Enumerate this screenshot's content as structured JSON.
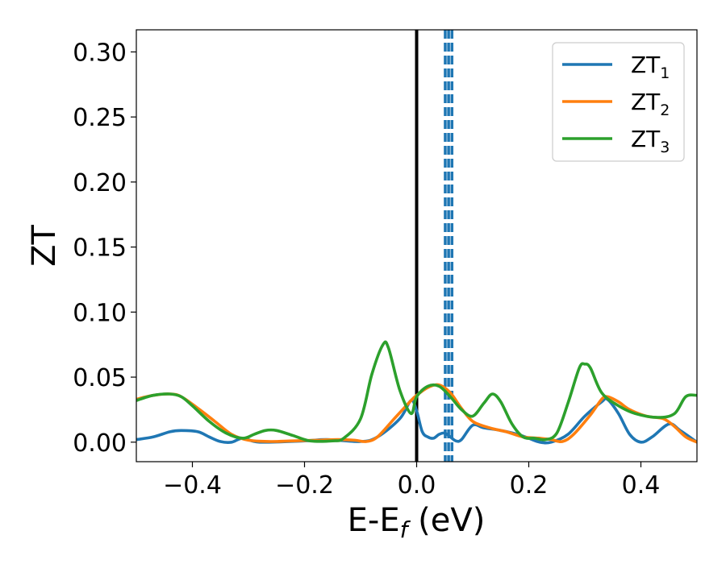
{
  "chart_data": {
    "type": "line",
    "title": "",
    "xlabel": "E-E",
    "xlabel_subscript": "f",
    "xlabel_unit": " (eV)",
    "ylabel": "ZT",
    "xlim": [
      -0.5,
      0.5
    ],
    "ylim": [
      -0.015,
      0.317
    ],
    "xticks": [
      -0.4,
      -0.2,
      0.0,
      0.2,
      0.4
    ],
    "xtick_labels": [
      "−0.4",
      "−0.2",
      "0.0",
      "0.2",
      "0.4"
    ],
    "yticks": [
      0.0,
      0.05,
      0.1,
      0.15,
      0.2,
      0.25,
      0.3
    ],
    "ytick_labels": [
      "0.00",
      "0.05",
      "0.10",
      "0.15",
      "0.20",
      "0.25",
      "0.30"
    ],
    "grid": false,
    "legend_position": "top-right",
    "vlines": [
      {
        "x": 0.0,
        "style": "solid",
        "color": "#000000"
      },
      {
        "x": 0.051,
        "style": "dashed",
        "color": "#1f77b4"
      },
      {
        "x": 0.057,
        "style": "dashed",
        "color": "#1f77b4"
      },
      {
        "x": 0.063,
        "style": "dashed",
        "color": "#1f77b4"
      }
    ],
    "series": [
      {
        "name": "ZT",
        "subscript": "1",
        "color": "#1f77b4",
        "points": [
          [
            -0.5,
            0.002
          ],
          [
            -0.47,
            0.004
          ],
          [
            -0.44,
            0.008
          ],
          [
            -0.42,
            0.009
          ],
          [
            -0.39,
            0.008
          ],
          [
            -0.37,
            0.004
          ],
          [
            -0.35,
            0.0005
          ],
          [
            -0.33,
            0.0
          ],
          [
            -0.31,
            0.003
          ],
          [
            -0.28,
            0.0
          ],
          [
            -0.2,
            0.001
          ],
          [
            -0.16,
            0.002
          ],
          [
            -0.1,
            0.0005
          ],
          [
            -0.07,
            0.004
          ],
          [
            -0.03,
            0.018
          ],
          [
            -0.01,
            0.032
          ],
          [
            0.0,
            0.024
          ],
          [
            0.01,
            0.008
          ],
          [
            0.02,
            0.004
          ],
          [
            0.03,
            0.003
          ],
          [
            0.04,
            0.006
          ],
          [
            0.05,
            0.007
          ],
          [
            0.06,
            0.004
          ],
          [
            0.07,
            0.001
          ],
          [
            0.08,
            0.002
          ],
          [
            0.1,
            0.013
          ],
          [
            0.12,
            0.011
          ],
          [
            0.15,
            0.009
          ],
          [
            0.18,
            0.006
          ],
          [
            0.2,
            0.003
          ],
          [
            0.22,
            0.0
          ],
          [
            0.24,
            0.0
          ],
          [
            0.27,
            0.006
          ],
          [
            0.3,
            0.02
          ],
          [
            0.33,
            0.031
          ],
          [
            0.34,
            0.033
          ],
          [
            0.36,
            0.022
          ],
          [
            0.38,
            0.006
          ],
          [
            0.4,
            0.0
          ],
          [
            0.42,
            0.004
          ],
          [
            0.45,
            0.014
          ],
          [
            0.47,
            0.009
          ],
          [
            0.5,
            0.0
          ]
        ]
      },
      {
        "name": "ZT",
        "subscript": "2",
        "color": "#ff7f0e",
        "points": [
          [
            -0.5,
            0.033
          ],
          [
            -0.47,
            0.036
          ],
          [
            -0.44,
            0.037
          ],
          [
            -0.42,
            0.035
          ],
          [
            -0.39,
            0.026
          ],
          [
            -0.36,
            0.016
          ],
          [
            -0.33,
            0.006
          ],
          [
            -0.3,
            0.0015
          ],
          [
            -0.26,
            0.0005
          ],
          [
            -0.22,
            0.001
          ],
          [
            -0.18,
            0.0015
          ],
          [
            -0.14,
            0.002
          ],
          [
            -0.11,
            0.0015
          ],
          [
            -0.09,
            0.0005
          ],
          [
            -0.07,
            0.004
          ],
          [
            -0.04,
            0.018
          ],
          [
            -0.01,
            0.032
          ],
          [
            0.0,
            0.036
          ],
          [
            0.02,
            0.042
          ],
          [
            0.04,
            0.044
          ],
          [
            0.06,
            0.038
          ],
          [
            0.08,
            0.026
          ],
          [
            0.1,
            0.016
          ],
          [
            0.13,
            0.011
          ],
          [
            0.16,
            0.008
          ],
          [
            0.19,
            0.004
          ],
          [
            0.22,
            0.003
          ],
          [
            0.24,
            0.002
          ],
          [
            0.26,
            0.0005
          ],
          [
            0.28,
            0.006
          ],
          [
            0.31,
            0.021
          ],
          [
            0.33,
            0.033
          ],
          [
            0.34,
            0.035
          ],
          [
            0.36,
            0.031
          ],
          [
            0.38,
            0.025
          ],
          [
            0.41,
            0.02
          ],
          [
            0.44,
            0.018
          ],
          [
            0.46,
            0.012
          ],
          [
            0.48,
            0.004
          ],
          [
            0.5,
            0.0
          ]
        ]
      },
      {
        "name": "ZT",
        "subscript": "3",
        "color": "#2ca02c",
        "points": [
          [
            -0.5,
            0.032
          ],
          [
            -0.47,
            0.036
          ],
          [
            -0.44,
            0.037
          ],
          [
            -0.42,
            0.035
          ],
          [
            -0.4,
            0.028
          ],
          [
            -0.37,
            0.016
          ],
          [
            -0.34,
            0.007
          ],
          [
            -0.31,
            0.003
          ],
          [
            -0.29,
            0.006
          ],
          [
            -0.27,
            0.009
          ],
          [
            -0.25,
            0.009
          ],
          [
            -0.22,
            0.005
          ],
          [
            -0.19,
            0.001
          ],
          [
            -0.15,
            0.001
          ],
          [
            -0.13,
            0.003
          ],
          [
            -0.1,
            0.018
          ],
          [
            -0.08,
            0.052
          ],
          [
            -0.06,
            0.075
          ],
          [
            -0.05,
            0.072
          ],
          [
            -0.03,
            0.04
          ],
          [
            -0.01,
            0.022
          ],
          [
            0.0,
            0.035
          ],
          [
            0.02,
            0.043
          ],
          [
            0.04,
            0.043
          ],
          [
            0.06,
            0.035
          ],
          [
            0.08,
            0.025
          ],
          [
            0.1,
            0.02
          ],
          [
            0.12,
            0.03
          ],
          [
            0.135,
            0.037
          ],
          [
            0.15,
            0.031
          ],
          [
            0.17,
            0.014
          ],
          [
            0.19,
            0.004
          ],
          [
            0.21,
            0.003
          ],
          [
            0.23,
            0.002
          ],
          [
            0.25,
            0.007
          ],
          [
            0.27,
            0.03
          ],
          [
            0.29,
            0.057
          ],
          [
            0.3,
            0.06
          ],
          [
            0.31,
            0.057
          ],
          [
            0.33,
            0.038
          ],
          [
            0.36,
            0.028
          ],
          [
            0.39,
            0.022
          ],
          [
            0.43,
            0.019
          ],
          [
            0.46,
            0.022
          ],
          [
            0.48,
            0.035
          ],
          [
            0.5,
            0.036
          ]
        ]
      }
    ]
  }
}
